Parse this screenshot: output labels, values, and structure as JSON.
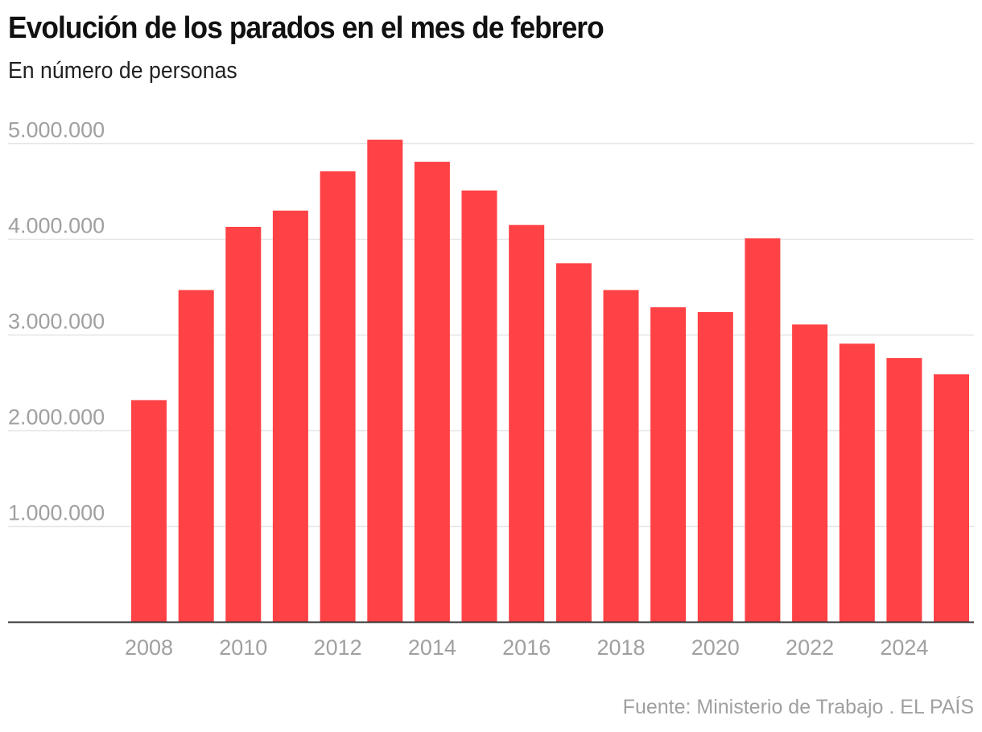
{
  "header": {
    "title": "Evolución de los parados en el mes de febrero",
    "subtitle": "En número de personas"
  },
  "footer": {
    "source": "Fuente: Ministerio de Trabajo . EL PAÍS"
  },
  "colors": {
    "bar": "#ff4245",
    "grid": "#e6e6e6",
    "axis": "#333333",
    "tick_text": "#a0a0a0"
  },
  "chart_data": {
    "type": "bar",
    "title": "Evolución de los parados en el mes de febrero",
    "subtitle": "En número de personas",
    "xlabel": "",
    "ylabel": "",
    "categories": [
      "2008",
      "2009",
      "2010",
      "2011",
      "2012",
      "2013",
      "2014",
      "2015",
      "2016",
      "2017",
      "2018",
      "2019",
      "2020",
      "2021",
      "2022",
      "2023",
      "2024",
      "2025"
    ],
    "values": [
      2320000,
      3470000,
      4130000,
      4300000,
      4710000,
      5040000,
      4810000,
      4510000,
      4150000,
      3750000,
      3470000,
      3290000,
      3240000,
      4010000,
      3110000,
      2910000,
      2760000,
      2590000
    ],
    "ylim": [
      0,
      5000000
    ],
    "yticks": [
      1000000,
      2000000,
      3000000,
      4000000,
      5000000
    ],
    "ytick_labels": [
      "1.000.000",
      "2.000.000",
      "3.000.000",
      "4.000.000",
      "5.000.000"
    ],
    "xtick_labels": [
      "2008",
      "2010",
      "2012",
      "2014",
      "2016",
      "2018",
      "2020",
      "2022",
      "2024"
    ],
    "grid": true,
    "legend": "none",
    "source": "Fuente: Ministerio de Trabajo . EL PAÍS"
  }
}
